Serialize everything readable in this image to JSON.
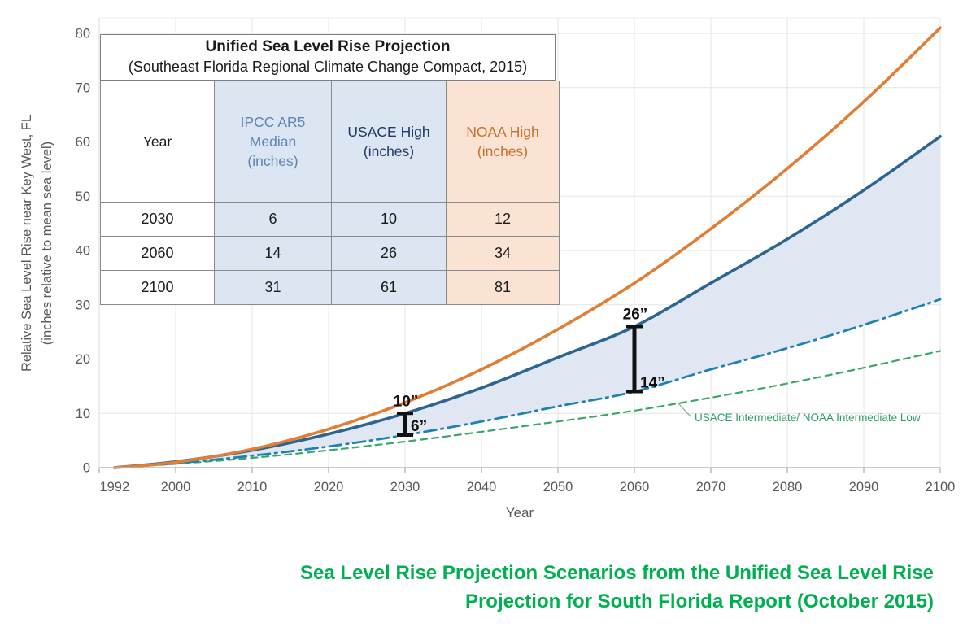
{
  "table": {
    "title": "Unified Sea Level Rise Projection",
    "subtitle": "(Southeast Florida Regional Climate Change Compact, 2015)",
    "columns": [
      "Year",
      "IPCC AR5\nMedian\n(inches)",
      "USACE High\n(inches)",
      "NOAA High\n(inches)"
    ],
    "rows": [
      {
        "year": "2030",
        "ipcc": "6",
        "usace": "10",
        "noaa": "12"
      },
      {
        "year": "2060",
        "ipcc": "14",
        "usace": "26",
        "noaa": "34"
      },
      {
        "year": "2100",
        "ipcc": "31",
        "usace": "61",
        "noaa": "81"
      }
    ]
  },
  "chart_data": {
    "type": "line",
    "xlabel": "Year",
    "ylabel_line1": "Relative Sea Level Rise near Key West, FL",
    "ylabel_line2": "(inches relative to mean sea level)",
    "xlim": [
      1990,
      2100
    ],
    "ylim": [
      0,
      82.8
    ],
    "grid": true,
    "x_ticks": [
      1992,
      2000,
      2010,
      2020,
      2030,
      2040,
      2050,
      2060,
      2070,
      2080,
      2090,
      2100
    ],
    "y_ticks": [
      0,
      10,
      20,
      30,
      40,
      50,
      60,
      70,
      80
    ],
    "series": [
      {
        "name": "USACE Intermediate/ NOAA Intermediate Low",
        "style": "dashed",
        "color": "#3aa768",
        "width": 2.2,
        "x": [
          1992,
          2000,
          2010,
          2020,
          2030,
          2040,
          2050,
          2060,
          2070,
          2080,
          2090,
          2100
        ],
        "values": [
          0,
          0.7,
          1.8,
          3.2,
          4.8,
          6.6,
          8.5,
          10.5,
          12.9,
          15.5,
          18.4,
          21.5
        ]
      },
      {
        "name": "IPCC AR5 Median",
        "style": "dashdot",
        "color": "#1f81b2",
        "width": 2.8,
        "x": [
          1992,
          2000,
          2010,
          2020,
          2030,
          2040,
          2050,
          2060,
          2070,
          2080,
          2090,
          2100
        ],
        "values": [
          0,
          0.8,
          2.2,
          3.9,
          6,
          8.5,
          11.3,
          14,
          18.1,
          22,
          26.3,
          31
        ]
      },
      {
        "name": "USACE High",
        "style": "solid",
        "color": "#2c6590",
        "width": 3.6,
        "x": [
          1992,
          2000,
          2010,
          2020,
          2030,
          2040,
          2050,
          2060,
          2070,
          2080,
          2090,
          2100
        ],
        "values": [
          0,
          1.1,
          3.2,
          6.2,
          10,
          14.7,
          20.3,
          26,
          34,
          42.1,
          51.1,
          61
        ]
      },
      {
        "name": "NOAA High",
        "style": "solid",
        "color": "#e07e35",
        "width": 3.6,
        "x": [
          1992,
          2000,
          2010,
          2020,
          2030,
          2040,
          2050,
          2060,
          2070,
          2080,
          2090,
          2100
        ],
        "values": [
          0,
          1.0,
          3.4,
          7.1,
          12,
          18.1,
          25.5,
          34,
          44,
          55.1,
          67.4,
          81
        ]
      }
    ],
    "band_fill": {
      "upper": "USACE High",
      "lower": "IPCC AR5 Median",
      "color": "#e0e7f3"
    },
    "annotations": [
      {
        "year": 2030,
        "lower": 6,
        "upper": 10,
        "upper_label": "10”",
        "lower_label": "6”"
      },
      {
        "year": 2060,
        "lower": 14,
        "upper": 26,
        "upper_label": "26”",
        "lower_label": "14”"
      }
    ],
    "curve_label": "USACE Intermediate/ NOAA Intermediate Low",
    "curve_label_color": "#2f9e68"
  },
  "caption": {
    "line1": "Sea Level Rise Projection Scenarios from the Unified Sea Level Rise",
    "line2": "Projection for South Florida Report (October 2015)",
    "color": "#00b050"
  }
}
